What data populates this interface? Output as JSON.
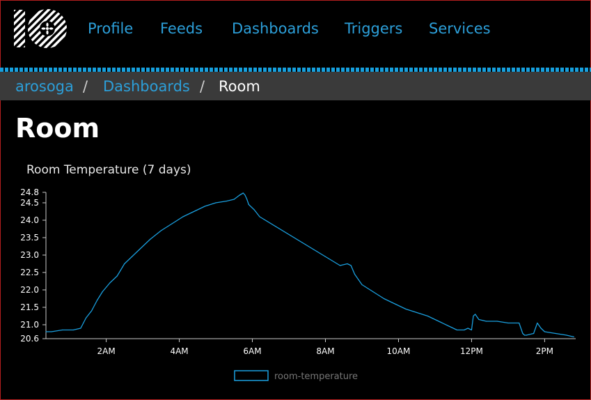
{
  "nav": {
    "items": [
      {
        "label": "Profile"
      },
      {
        "label": "Feeds"
      },
      {
        "label": "Dashboards"
      },
      {
        "label": "Triggers"
      },
      {
        "label": "Services"
      }
    ]
  },
  "breadcrumb": {
    "user": "arosoga",
    "sep1": "/",
    "section": "Dashboards",
    "sep2": "/",
    "current": "Room"
  },
  "page": {
    "title": "Room"
  },
  "widget": {
    "title": "Room Temperature (7 days)"
  },
  "colors": {
    "accent": "#2c9fd9",
    "line": "#1aa0e0",
    "breadcrumb_bg": "#3a3a3a"
  },
  "chart_data": {
    "type": "line",
    "xlim": [
      0.35,
      14.85
    ],
    "ylim": [
      20.6,
      24.8
    ],
    "y_ticks": [
      20.6,
      21.0,
      21.5,
      22.0,
      22.5,
      23.0,
      23.5,
      24.0,
      24.5,
      24.8
    ],
    "y_tick_labels": [
      "20.6",
      "21.0",
      "21.5",
      "22.0",
      "22.5",
      "23.0",
      "23.5",
      "24.0",
      "24.5",
      "24.8"
    ],
    "x_ticks": [
      2,
      4,
      6,
      8,
      10,
      12,
      14
    ],
    "x_tick_labels": [
      "2AM",
      "4AM",
      "6AM",
      "8AM",
      "10AM",
      "12PM",
      "2PM"
    ],
    "grid": false,
    "legend_position": "bottom",
    "series": [
      {
        "name": "room-temperature",
        "x": [
          0.35,
          0.5,
          0.8,
          1.1,
          1.3,
          1.45,
          1.6,
          1.75,
          1.9,
          2.1,
          2.3,
          2.5,
          2.7,
          2.9,
          3.2,
          3.5,
          3.8,
          4.1,
          4.4,
          4.7,
          5.0,
          5.3,
          5.5,
          5.65,
          5.75,
          5.8,
          5.85,
          5.9,
          6.05,
          6.2,
          8.4,
          8.6,
          8.7,
          8.8,
          9.0,
          9.3,
          9.6,
          9.9,
          10.2,
          10.5,
          10.8,
          11.1,
          11.4,
          11.6,
          11.8,
          11.9,
          12.0,
          12.05,
          12.1,
          12.2,
          12.4,
          12.7,
          13.0,
          13.3,
          13.4,
          13.45,
          13.5,
          13.7,
          13.8,
          13.9,
          14.0,
          14.3,
          14.6,
          14.8
        ],
        "y": [
          20.8,
          20.8,
          20.85,
          20.85,
          20.9,
          21.2,
          21.4,
          21.7,
          21.95,
          22.2,
          22.4,
          22.75,
          22.95,
          23.15,
          23.45,
          23.7,
          23.9,
          24.1,
          24.25,
          24.4,
          24.5,
          24.55,
          24.6,
          24.72,
          24.78,
          24.72,
          24.6,
          24.45,
          24.3,
          24.1,
          22.7,
          22.75,
          22.7,
          22.45,
          22.15,
          21.95,
          21.75,
          21.6,
          21.45,
          21.35,
          21.25,
          21.1,
          20.95,
          20.85,
          20.85,
          20.9,
          20.85,
          21.25,
          21.3,
          21.15,
          21.1,
          21.1,
          21.05,
          21.05,
          20.75,
          20.7,
          20.7,
          20.75,
          21.05,
          20.9,
          20.8,
          20.75,
          20.7,
          20.65
        ]
      }
    ]
  }
}
